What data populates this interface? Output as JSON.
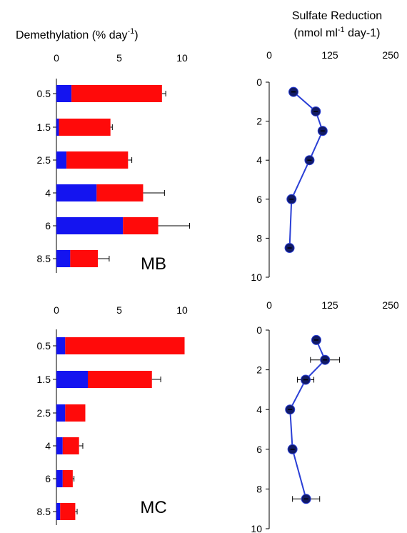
{
  "colors": {
    "blue": "#1414f0",
    "red": "#ff0a0a",
    "line": "#2a3fd6",
    "marker": "#111a66"
  },
  "headers": {
    "demethylation_prefix": "Demethylation (% day",
    "demethylation_sup": "-1",
    "demethylation_suffix": ")",
    "sulfate_line1": "Sulfate Reduction",
    "sulfate_line2_a": "(nmol ml",
    "sulfate_line2_sup": "-1",
    "sulfate_line2_b": " day-1)"
  },
  "chart_data": [
    {
      "type": "bar",
      "panel": "MB",
      "orientation": "horizontal-stacked",
      "categories": [
        "0.5",
        "1.5",
        "2.5",
        "4",
        "6",
        "8.5"
      ],
      "series": [
        {
          "color": "blue",
          "values": [
            1.2,
            0.2,
            0.8,
            3.2,
            5.3,
            1.1
          ]
        },
        {
          "color": "red",
          "values": [
            7.2,
            4.1,
            4.9,
            3.7,
            2.8,
            2.2
          ]
        }
      ],
      "error": [
        0.3,
        0.15,
        0.3,
        1.7,
        2.5,
        0.9
      ],
      "xlim": [
        0,
        10
      ],
      "xticks": [
        "0",
        "5",
        "10"
      ],
      "label": "MB"
    },
    {
      "type": "line",
      "panel": "MB-sulfate",
      "x": [
        50,
        96,
        110,
        83,
        46,
        42
      ],
      "y": [
        0.5,
        1.5,
        2.5,
        4,
        6,
        8.5
      ],
      "xerr": [
        0,
        0,
        0,
        0,
        0,
        0
      ],
      "xlim": [
        0,
        250
      ],
      "ylim": [
        0,
        10
      ],
      "xticks": [
        "0",
        "125",
        "250"
      ],
      "yticks": [
        "0",
        "2",
        "4",
        "6",
        "8",
        "10"
      ]
    },
    {
      "type": "bar",
      "panel": "MC",
      "orientation": "horizontal-stacked",
      "categories": [
        "0.5",
        "1.5",
        "2.5",
        "4",
        "6",
        "8.5"
      ],
      "series": [
        {
          "color": "blue",
          "values": [
            0.7,
            2.5,
            0.7,
            0.5,
            0.5,
            0.3
          ]
        },
        {
          "color": "red",
          "values": [
            9.5,
            5.1,
            1.6,
            1.3,
            0.8,
            1.2
          ]
        }
      ],
      "error": [
        0,
        0.7,
        0,
        0.3,
        0.1,
        0.15
      ],
      "xlim": [
        0,
        10
      ],
      "xticks": [
        "0",
        "5",
        "10"
      ],
      "label": "MC"
    },
    {
      "type": "line",
      "panel": "MC-sulfate",
      "x": [
        97,
        115,
        75,
        43,
        48,
        76
      ],
      "y": [
        0.5,
        1.5,
        2.5,
        4,
        6,
        8.5
      ],
      "xerr": [
        0,
        30,
        17,
        0,
        0,
        28
      ],
      "xlim": [
        0,
        250
      ],
      "ylim": [
        0,
        10
      ],
      "xticks": [
        "0",
        "125",
        "250"
      ],
      "yticks": [
        "0",
        "2",
        "4",
        "6",
        "8",
        "10"
      ]
    }
  ]
}
